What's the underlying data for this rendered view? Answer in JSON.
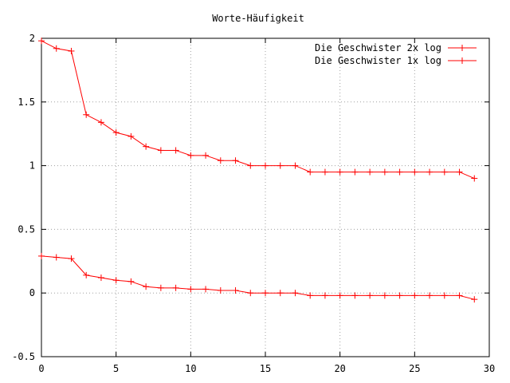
{
  "chart_data": {
    "type": "line",
    "title": "Worte-Häufigkeit",
    "xlabel": "",
    "ylabel": "",
    "xlim": [
      0,
      30
    ],
    "ylim": [
      -0.5,
      2
    ],
    "x_ticks": [
      0,
      5,
      10,
      15,
      20,
      25,
      30
    ],
    "y_ticks": [
      -0.5,
      0,
      0.5,
      1,
      1.5,
      2
    ],
    "x_tick_labels": [
      "0",
      "5",
      "10",
      "15",
      "20",
      "25",
      "30"
    ],
    "y_tick_labels": [
      "-0.5",
      "0",
      "0.5",
      "1",
      "1.5",
      "2"
    ],
    "grid": true,
    "legend_position": "top-right",
    "series": [
      {
        "name": "Die Geschwister 2x log",
        "color": "#ff0000",
        "x": [
          0,
          1,
          2,
          3,
          4,
          5,
          6,
          7,
          8,
          9,
          10,
          11,
          12,
          13,
          14,
          15,
          16,
          17,
          18,
          19,
          20,
          21,
          22,
          23,
          24,
          25,
          26,
          27,
          28,
          29
        ],
        "values": [
          1.98,
          1.92,
          1.9,
          1.4,
          1.34,
          1.26,
          1.23,
          1.15,
          1.12,
          1.12,
          1.08,
          1.08,
          1.04,
          1.04,
          1.0,
          1.0,
          1.0,
          1.0,
          0.95,
          0.95,
          0.95,
          0.95,
          0.95,
          0.95,
          0.95,
          0.95,
          0.95,
          0.95,
          0.95,
          0.9
        ]
      },
      {
        "name": "Die Geschwister 1x log",
        "color": "#ff0000",
        "x": [
          0,
          1,
          2,
          3,
          4,
          5,
          6,
          7,
          8,
          9,
          10,
          11,
          12,
          13,
          14,
          15,
          16,
          17,
          18,
          19,
          20,
          21,
          22,
          23,
          24,
          25,
          26,
          27,
          28,
          29
        ],
        "values": [
          0.29,
          0.28,
          0.27,
          0.14,
          0.12,
          0.1,
          0.09,
          0.05,
          0.04,
          0.04,
          0.03,
          0.03,
          0.02,
          0.02,
          0.0,
          0.0,
          0.0,
          0.0,
          -0.02,
          -0.02,
          -0.02,
          -0.02,
          -0.02,
          -0.02,
          -0.02,
          -0.02,
          -0.02,
          -0.02,
          -0.02,
          -0.05
        ]
      }
    ]
  }
}
